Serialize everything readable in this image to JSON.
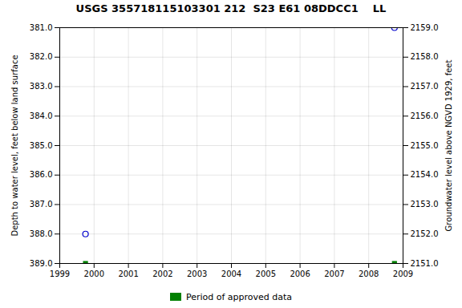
{
  "chart_data": {
    "type": "scatter",
    "title": "USGS 355718115103301 212  S23 E61 08DDCC1    LL",
    "ylabel": "Depth to water level, feet below land surface",
    "y2label": "Groundwater level above NGVD 1929, feet",
    "xlim": [
      1999,
      2009
    ],
    "xticks": [
      1999,
      2000,
      2001,
      2002,
      2003,
      2004,
      2005,
      2006,
      2007,
      2008,
      2009
    ],
    "ylim": [
      389.0,
      381.0
    ],
    "yticks": [
      {
        "value": 381.0,
        "label": "381.0"
      },
      {
        "value": 382.0,
        "label": "382.0"
      },
      {
        "value": 383.0,
        "label": "383.0"
      },
      {
        "value": 384.0,
        "label": "384.0"
      },
      {
        "value": 385.0,
        "label": "385.0"
      },
      {
        "value": 386.0,
        "label": "386.0"
      },
      {
        "value": 387.0,
        "label": "387.0"
      },
      {
        "value": 388.0,
        "label": "388.0"
      },
      {
        "value": 389.0,
        "label": "389.0"
      }
    ],
    "y2lim": [
      2151.0,
      2159.0
    ],
    "y2ticks": [
      {
        "value": 2151.0,
        "label": "2151.0"
      },
      {
        "value": 2152.0,
        "label": "2152.0"
      },
      {
        "value": 2153.0,
        "label": "2153.0"
      },
      {
        "value": 2154.0,
        "label": "2154.0"
      },
      {
        "value": 2155.0,
        "label": "2155.0"
      },
      {
        "value": 2156.0,
        "label": "2156.0"
      },
      {
        "value": 2157.0,
        "label": "2157.0"
      },
      {
        "value": 2158.0,
        "label": "2158.0"
      },
      {
        "value": 2159.0,
        "label": "2159.0"
      }
    ],
    "grid": true,
    "legend": "bottom",
    "series": [
      {
        "color": "#0000cc",
        "marker": "open_circle",
        "x": [
          1999.75,
          2008.75
        ],
        "values": [
          388.0,
          381.0
        ]
      },
      {
        "name": "Period of approved data",
        "color": "#008000",
        "marker": "square",
        "x": [
          1999.75,
          2008.75
        ],
        "values": [
          389.0,
          389.0
        ]
      }
    ]
  }
}
